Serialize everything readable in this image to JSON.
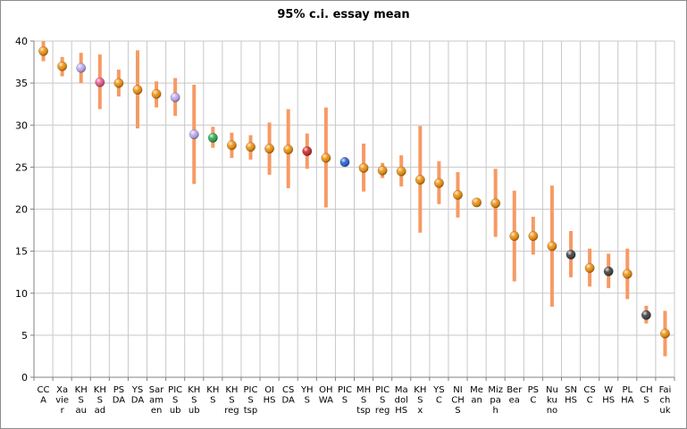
{
  "chart_data": {
    "type": "scatter",
    "title": "95% c.i. essay mean",
    "xlabel": "",
    "ylabel": "",
    "ylim": [
      0,
      40
    ],
    "yticks": [
      0,
      5,
      10,
      15,
      20,
      25,
      30,
      35,
      40
    ],
    "grid": true,
    "error_bar_color": "#f79a64",
    "categories": [
      {
        "label": "CC A",
        "mean": 38.8,
        "low": 37.6,
        "high": 40.0,
        "color": "#f08c00"
      },
      {
        "label": "Xa vie r",
        "mean": 37.0,
        "low": 35.8,
        "high": 38.1,
        "color": "#f08c00"
      },
      {
        "label": "KH S au",
        "mean": 36.8,
        "low": 35.0,
        "high": 38.6,
        "color": "#b9a6f0"
      },
      {
        "label": "KH S ad",
        "mean": 35.1,
        "low": 31.9,
        "high": 38.4,
        "color": "#e8508a"
      },
      {
        "label": "PS DA",
        "mean": 35.0,
        "low": 33.4,
        "high": 36.6,
        "color": "#f08c00"
      },
      {
        "label": "YS DA",
        "mean": 34.2,
        "low": 29.6,
        "high": 38.9,
        "color": "#f08c00"
      },
      {
        "label": "Sar am en",
        "mean": 33.7,
        "low": 32.1,
        "high": 35.2,
        "color": "#f08c00"
      },
      {
        "label": "PIC S ub",
        "mean": 33.3,
        "low": 31.1,
        "high": 35.6,
        "color": "#b9a6f0"
      },
      {
        "label": "KH S ub",
        "mean": 28.9,
        "low": 23.0,
        "high": 34.8,
        "color": "#b9a6f0"
      },
      {
        "label": "KH S",
        "mean": 28.5,
        "low": 27.3,
        "high": 29.8,
        "color": "#1ea84a"
      },
      {
        "label": "KH S reg",
        "mean": 27.6,
        "low": 26.1,
        "high": 29.1,
        "color": "#f08c00"
      },
      {
        "label": "PIC S tsp",
        "mean": 27.4,
        "low": 25.9,
        "high": 28.8,
        "color": "#f08c00"
      },
      {
        "label": "OI HS",
        "mean": 27.2,
        "low": 24.1,
        "high": 30.3,
        "color": "#f08c00"
      },
      {
        "label": "CS DA",
        "mean": 27.1,
        "low": 22.5,
        "high": 31.9,
        "color": "#f08c00"
      },
      {
        "label": "YH S",
        "mean": 26.9,
        "low": 24.8,
        "high": 29.0,
        "color": "#d01e1e"
      },
      {
        "label": "OH WA",
        "mean": 26.1,
        "low": 20.2,
        "high": 32.1,
        "color": "#f08c00"
      },
      {
        "label": "PIC S",
        "mean": 25.6,
        "low": 25.1,
        "high": 26.2,
        "color": "#1e5ad8"
      },
      {
        "label": "MH S tsp",
        "mean": 24.9,
        "low": 22.1,
        "high": 27.8,
        "color": "#f08c00"
      },
      {
        "label": "PIC S reg",
        "mean": 24.6,
        "low": 23.7,
        "high": 25.5,
        "color": "#f08c00"
      },
      {
        "label": "Ma dol HS",
        "mean": 24.5,
        "low": 22.7,
        "high": 26.4,
        "color": "#f08c00"
      },
      {
        "label": "KH S x",
        "mean": 23.5,
        "low": 17.2,
        "high": 29.9,
        "color": "#f08c00"
      },
      {
        "label": "YS C",
        "mean": 23.1,
        "low": 20.6,
        "high": 25.7,
        "color": "#f08c00"
      },
      {
        "label": "NI CH S",
        "mean": 21.7,
        "low": 19.0,
        "high": 24.4,
        "color": "#f08c00"
      },
      {
        "label": "Me an",
        "mean": 20.8,
        "low": 20.4,
        "high": 21.1,
        "color": "#f08c00"
      },
      {
        "label": "Miz pa h",
        "mean": 20.7,
        "low": 16.7,
        "high": 24.8,
        "color": "#f08c00"
      },
      {
        "label": "Ber ea",
        "mean": 16.8,
        "low": 11.4,
        "high": 22.2,
        "color": "#f08c00"
      },
      {
        "label": "PS C",
        "mean": 16.8,
        "low": 14.6,
        "high": 19.1,
        "color": "#f08c00"
      },
      {
        "label": "Nu ku no",
        "mean": 15.6,
        "low": 8.4,
        "high": 22.8,
        "color": "#f08c00"
      },
      {
        "label": "SN HS",
        "mean": 14.6,
        "low": 11.9,
        "high": 17.4,
        "color": "#383838"
      },
      {
        "label": "CS C",
        "mean": 13.0,
        "low": 10.8,
        "high": 15.3,
        "color": "#f08c00"
      },
      {
        "label": "W HS",
        "mean": 12.6,
        "low": 10.6,
        "high": 14.7,
        "color": "#383838"
      },
      {
        "label": "PL HA",
        "mean": 12.3,
        "low": 9.3,
        "high": 15.3,
        "color": "#f08c00"
      },
      {
        "label": "CH S",
        "mean": 7.4,
        "low": 6.4,
        "high": 8.5,
        "color": "#383838"
      },
      {
        "label": "Fai ch uk",
        "mean": 5.2,
        "low": 2.5,
        "high": 7.9,
        "color": "#f08c00"
      }
    ]
  }
}
